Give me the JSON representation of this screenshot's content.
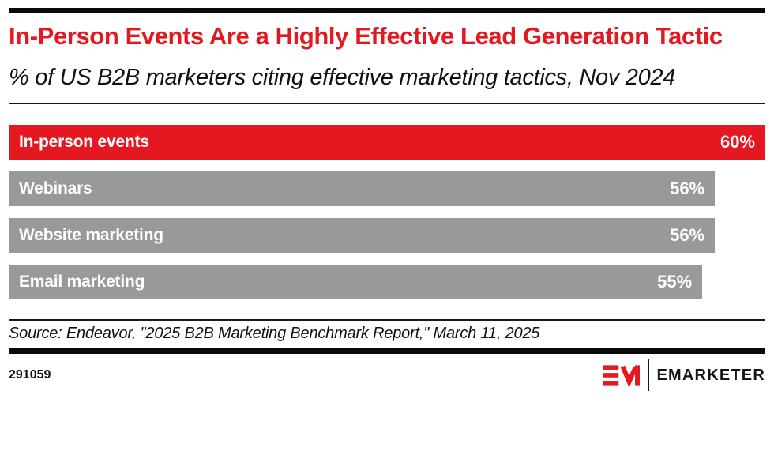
{
  "header": {
    "title": "In-Person Events Are a Highly Effective Lead Generation Tactic",
    "subtitle": "% of US B2B marketers citing effective marketing tactics, Nov 2024"
  },
  "chart_data": {
    "type": "bar",
    "orientation": "horizontal",
    "title": "In-Person Events Are a Highly Effective Lead Generation Tactic",
    "subtitle": "% of US B2B marketers citing effective marketing tactics, Nov 2024",
    "categories": [
      "In-person events",
      "Webinars",
      "Website marketing",
      "Email marketing"
    ],
    "values": [
      60,
      56,
      56,
      55
    ],
    "value_labels": [
      "60%",
      "56%",
      "56%",
      "55%"
    ],
    "unit": "%",
    "xlim": [
      0,
      60
    ],
    "grid": false,
    "legend": "none",
    "bar_colors": [
      "#e31820",
      "#999999",
      "#999999",
      "#999999"
    ],
    "label_position": "inside-left",
    "value_position": "inside-right"
  },
  "footer": {
    "source": "Source: Endeavor, \"2025 B2B Marketing Benchmark Report,\" March 11, 2025",
    "chart_id": "291059",
    "brand": "EMARKETER"
  },
  "colors": {
    "accent_red": "#e31820",
    "bar_gray": "#999999",
    "rule_black": "#0a0a0a",
    "text_black": "#111111",
    "bar_text_white": "#ffffff"
  }
}
